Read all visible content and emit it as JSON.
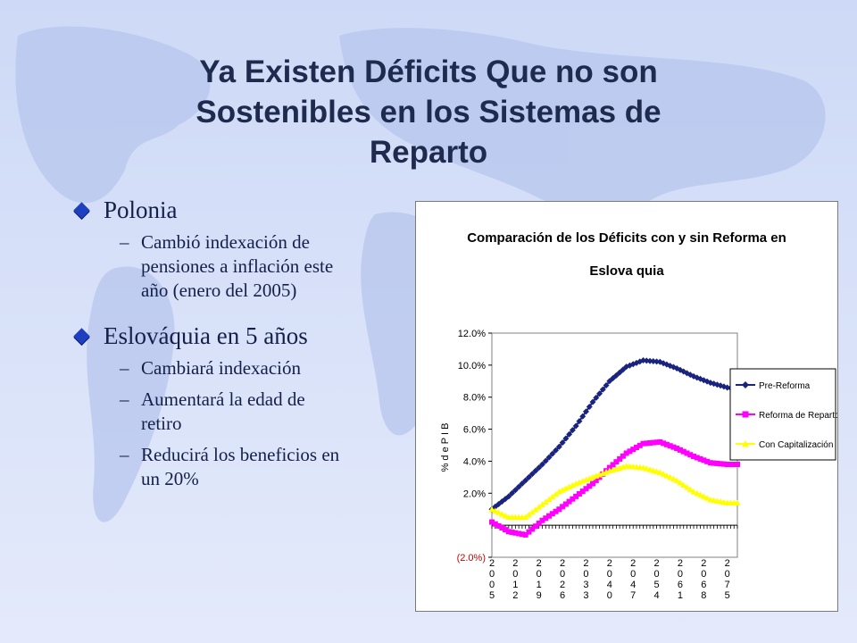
{
  "slide": {
    "title_lines": [
      "Ya Existen Déficits Que no son",
      "Sostenibles en los Sistemas de",
      "Reparto"
    ],
    "bullets": [
      {
        "text": "Polonia",
        "subs": [
          "Cambió indexación de",
          "pensiones a inflación este",
          "año (enero del 2005)"
        ]
      },
      {
        "text": "Eslováquia en 5 años",
        "subs": [
          "Cambiará indexación",
          "Aumentará la edad de",
          "retiro",
          "Reducirá los beneficios en",
          "un 20%"
        ]
      }
    ],
    "dash": "–"
  },
  "colors": {
    "accent": "#1d3fc0",
    "title": "#1e2a4e"
  },
  "chart_data": {
    "type": "line",
    "title_lines": [
      "Comparación de los Déficits con y sin Reforma en",
      "Eslova quia"
    ],
    "ylabel": "% d e P I B",
    "ylim": [
      -2.0,
      12.0
    ],
    "y_ticks": [
      "(2.0%)",
      "2.0%",
      "4.0%",
      "6.0%",
      "8.0%",
      "10.0%",
      "12.0%"
    ],
    "x_tick_labels": [
      "2005",
      "2012",
      "2019",
      "2026",
      "2033",
      "2040",
      "2047",
      "2054",
      "2061",
      "2068",
      "2075"
    ],
    "legend_position": "right",
    "x": [
      2005,
      2010,
      2015,
      2020,
      2025,
      2030,
      2035,
      2040,
      2045,
      2050,
      2055,
      2060,
      2065,
      2070,
      2075,
      2078
    ],
    "series": [
      {
        "name": "Pre-Reforma",
        "color": "#1a237e",
        "marker": "diamond",
        "values": [
          1.0,
          1.8,
          2.8,
          3.8,
          4.9,
          6.2,
          7.7,
          9.0,
          9.9,
          10.3,
          10.2,
          9.8,
          9.3,
          8.9,
          8.6,
          8.5
        ]
      },
      {
        "name": "Reforma de Reparto",
        "color": "#ff00ff",
        "marker": "square",
        "values": [
          0.2,
          -0.4,
          -0.6,
          0.3,
          1.0,
          1.8,
          2.6,
          3.6,
          4.5,
          5.1,
          5.2,
          4.8,
          4.3,
          3.9,
          3.8,
          3.8
        ]
      },
      {
        "name": "Con Capitalización",
        "color": "#ffff00",
        "marker": "triangle",
        "values": [
          1.0,
          0.5,
          0.5,
          1.3,
          2.1,
          2.6,
          3.0,
          3.4,
          3.7,
          3.6,
          3.3,
          2.8,
          2.1,
          1.6,
          1.4,
          1.4
        ]
      }
    ]
  }
}
